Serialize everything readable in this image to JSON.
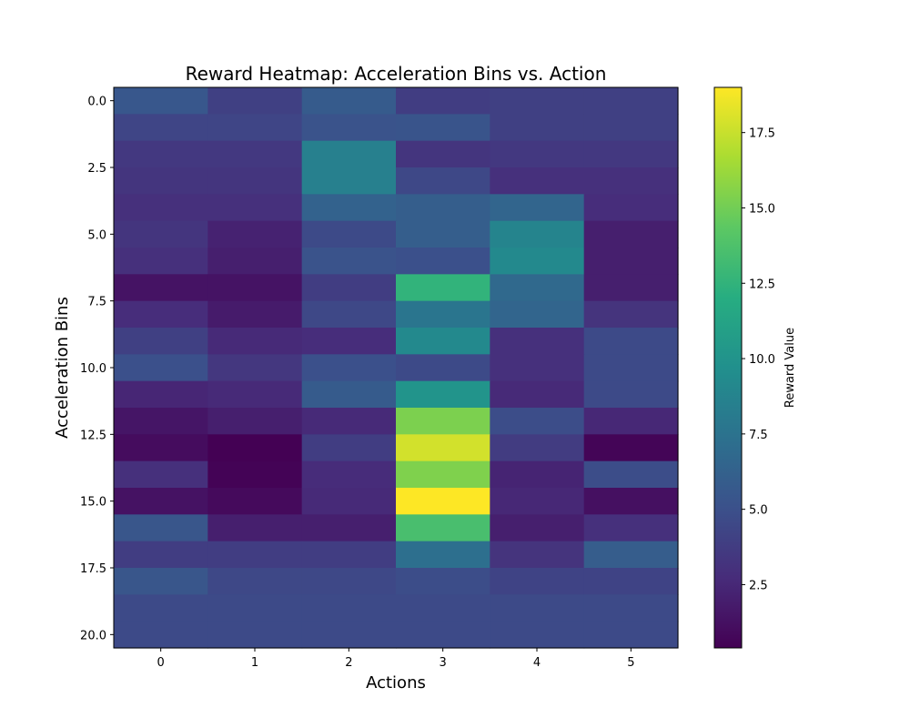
{
  "chart_data": {
    "type": "heatmap",
    "title": "Reward Heatmap: Acceleration Bins vs. Action",
    "xlabel": "Actions",
    "ylabel": "Acceleration Bins",
    "colorbar_label": "Reward Value",
    "colormap": "viridis",
    "x_categories": [
      0,
      1,
      2,
      3,
      4,
      5
    ],
    "y_bins": [
      0,
      1,
      2,
      3,
      4,
      5,
      6,
      7,
      8,
      9,
      10,
      11,
      12,
      13,
      14,
      15,
      16,
      17,
      18,
      19,
      20
    ],
    "x_tick_labels": [
      "0",
      "1",
      "2",
      "3",
      "4",
      "5"
    ],
    "y_tick_values": [
      0,
      2.5,
      5,
      7.5,
      10,
      12.5,
      15,
      17.5,
      20
    ],
    "y_tick_labels": [
      "0.0",
      "2.5",
      "5.0",
      "7.5",
      "10.0",
      "12.5",
      "15.0",
      "17.5",
      "20.0"
    ],
    "colorbar_range": [
      0.4,
      19.0
    ],
    "colorbar_tick_values": [
      2.5,
      5,
      7.5,
      10,
      12.5,
      15,
      17.5
    ],
    "colorbar_tick_labels": [
      "2.5",
      "5.0",
      "7.5",
      "10.0",
      "12.5",
      "15.0",
      "17.5"
    ],
    "values": [
      [
        5.5,
        4.0,
        5.8,
        3.8,
        4.0,
        4.0
      ],
      [
        4.3,
        4.3,
        5.2,
        5.3,
        4.0,
        4.0
      ],
      [
        3.5,
        3.5,
        8.5,
        3.3,
        3.5,
        3.5
      ],
      [
        3.3,
        3.3,
        8.5,
        4.5,
        3.0,
        3.0
      ],
      [
        3.0,
        3.0,
        6.3,
        6.0,
        6.5,
        2.8
      ],
      [
        3.3,
        2.2,
        4.6,
        6.0,
        8.8,
        2.0
      ],
      [
        3.0,
        2.0,
        5.2,
        5.0,
        9.2,
        2.0
      ],
      [
        1.4,
        1.4,
        3.8,
        12.5,
        6.8,
        2.0
      ],
      [
        2.8,
        1.8,
        4.5,
        7.7,
        6.5,
        3.2
      ],
      [
        4.0,
        2.6,
        2.8,
        9.2,
        3.0,
        4.6
      ],
      [
        5.0,
        3.4,
        5.0,
        4.6,
        3.0,
        4.6
      ],
      [
        2.4,
        2.6,
        5.8,
        10.0,
        2.6,
        4.6
      ],
      [
        1.5,
        2.0,
        2.6,
        15.3,
        4.8,
        2.5
      ],
      [
        1.0,
        0.4,
        3.8,
        17.8,
        3.7,
        0.6
      ],
      [
        3.0,
        0.5,
        2.7,
        15.4,
        2.3,
        4.8
      ],
      [
        1.3,
        0.9,
        2.6,
        19.0,
        2.5,
        1.2
      ],
      [
        5.4,
        2.0,
        2.0,
        13.5,
        2.0,
        3.0
      ],
      [
        3.8,
        3.8,
        3.8,
        7.2,
        3.2,
        5.9
      ],
      [
        5.4,
        4.5,
        4.5,
        4.8,
        4.2,
        4.2
      ],
      [
        4.6,
        4.6,
        4.6,
        4.6,
        4.6,
        4.6
      ],
      [
        4.6,
        4.6,
        4.6,
        4.6,
        4.6,
        4.6
      ]
    ]
  }
}
